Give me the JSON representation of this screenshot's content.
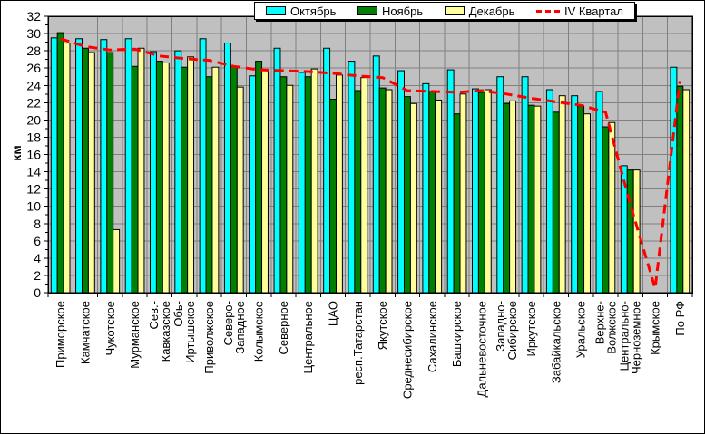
{
  "legend": {
    "items": [
      {
        "label": "Октябрь",
        "swatch": "box",
        "color": "#00FFFF"
      },
      {
        "label": "Ноябрь",
        "swatch": "box",
        "color": "#008000"
      },
      {
        "label": "Декабрь",
        "swatch": "box",
        "color": "#FFFF99"
      },
      {
        "label": "IV Квартал",
        "swatch": "dash",
        "color": "#FF0000"
      }
    ]
  },
  "colors": {
    "plot_background": "#C0C0C0",
    "gridline": "#808080",
    "axis": "#000000",
    "october": "#00FFFF",
    "november": "#008000",
    "december": "#FFFF99",
    "quarter_line": "#FF0000"
  },
  "y_axis": {
    "title": "км",
    "min": 0,
    "max": 32,
    "step": 2,
    "tick_labels": [
      "32",
      "30",
      "28",
      "26",
      "24",
      "22",
      "20",
      "18",
      "16",
      "14",
      "12",
      "10",
      "8",
      "6",
      "4",
      "2",
      "0"
    ]
  },
  "chart_data": {
    "type": "bar",
    "title": "",
    "xlabel": "",
    "ylabel": "км",
    "ylim": [
      0,
      32
    ],
    "grid": true,
    "legend_position": "top",
    "categories": [
      "Приморское",
      "Камчатское",
      "Чукотское",
      "Мурманское",
      "Сев.-\nКавказское",
      "Обь-\nИртышское",
      "Приволжское",
      "Северо-\nЗападное",
      "Колымское",
      "Северное",
      "Центральное",
      "ЦАО",
      "респ.Татарстан",
      "Якутское",
      "Среднесибирское",
      "Сахалинское",
      "Башкирское",
      "Дальневосточное",
      "Западно-\nСибирское",
      "Иркутское",
      "Забайкальское",
      "Уральское",
      "Верхне-\nВолжское",
      "Центрально-\nЧерноземное",
      "Крымское",
      "По РФ"
    ],
    "series": [
      {
        "name": "Октябрь",
        "type": "bar",
        "color": "#00FFFF",
        "values": [
          29.5,
          29.4,
          29.3,
          29.4,
          27.9,
          28.0,
          29.4,
          28.9,
          25.1,
          28.3,
          25.5,
          28.3,
          26.8,
          27.4,
          25.7,
          24.2,
          25.8,
          23.6,
          25.0,
          25.0,
          23.5,
          22.8,
          23.3,
          14.7,
          null,
          26.1
        ]
      },
      {
        "name": "Ноябрь",
        "type": "bar",
        "color": "#008000",
        "values": [
          30.1,
          28.3,
          27.8,
          26.2,
          26.8,
          26.1,
          25.0,
          26.2,
          26.8,
          25.0,
          25.0,
          22.4,
          23.4,
          23.7,
          22.7,
          23.3,
          20.7,
          23.2,
          21.9,
          21.7,
          20.9,
          21.6,
          19.2,
          14.2,
          null,
          23.9
        ]
      },
      {
        "name": "Декабрь",
        "type": "bar",
        "color": "#FFFF99",
        "values": [
          28.9,
          27.8,
          7.3,
          28.3,
          26.6,
          27.3,
          26.1,
          23.8,
          25.8,
          24.0,
          25.9,
          25.2,
          24.9,
          23.5,
          21.9,
          22.3,
          23.0,
          23.5,
          22.2,
          21.6,
          22.8,
          20.7,
          19.7,
          14.2,
          null,
          23.5
        ]
      },
      {
        "name": "IV Квартал",
        "type": "line",
        "color": "#FF0000",
        "values": [
          29.4,
          28.5,
          28.1,
          28.2,
          27.4,
          27.1,
          26.9,
          26.2,
          25.8,
          25.7,
          25.6,
          25.4,
          25.1,
          24.9,
          23.4,
          23.3,
          23.2,
          23.4,
          23.0,
          22.5,
          22.1,
          21.7,
          20.9,
          10.2,
          0.5,
          24.5
        ]
      }
    ]
  }
}
